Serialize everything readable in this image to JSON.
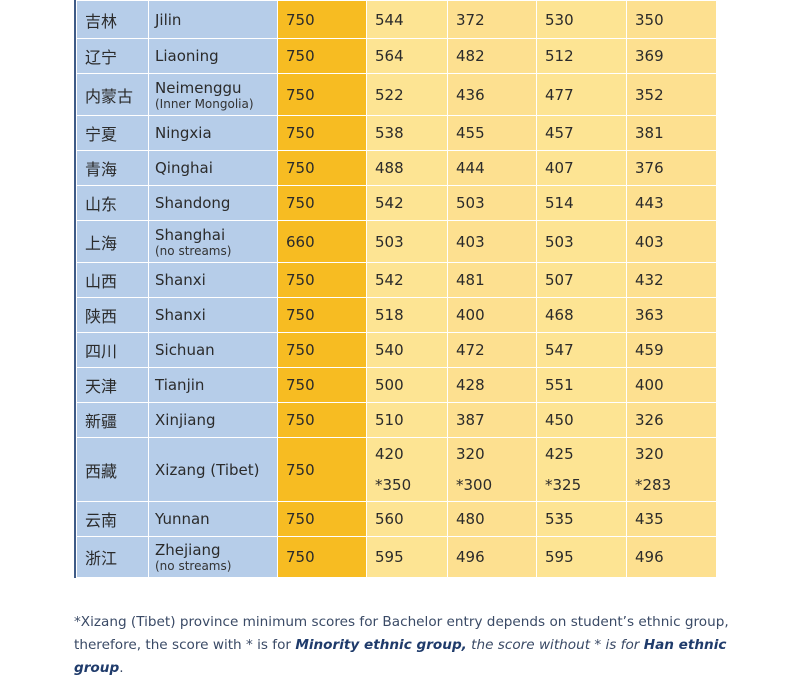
{
  "rows": [
    {
      "cn": "吉林",
      "en": "Jilin",
      "sub": "",
      "total": "750",
      "s1": "544",
      "s2": "372",
      "s3": "530",
      "s4": "350"
    },
    {
      "cn": "辽宁",
      "en": "Liaoning",
      "sub": "",
      "total": "750",
      "s1": "564",
      "s2": "482",
      "s3": "512",
      "s4": "369"
    },
    {
      "cn": "内蒙古",
      "en": "Neimenggu",
      "sub": "(Inner Mongolia)",
      "total": "750",
      "s1": "522",
      "s2": "436",
      "s3": "477",
      "s4": "352"
    },
    {
      "cn": "宁夏",
      "en": "Ningxia",
      "sub": "",
      "total": "750",
      "s1": "538",
      "s2": "455",
      "s3": "457",
      "s4": "381"
    },
    {
      "cn": "青海",
      "en": "Qinghai",
      "sub": "",
      "total": "750",
      "s1": "488",
      "s2": "444",
      "s3": "407",
      "s4": "376"
    },
    {
      "cn": "山东",
      "en": "Shandong",
      "sub": "",
      "total": "750",
      "s1": "542",
      "s2": "503",
      "s3": "514",
      "s4": "443"
    },
    {
      "cn": "上海",
      "en": "Shanghai",
      "sub": "(no streams)",
      "total": "660",
      "s1": "503",
      "s2": "403",
      "s3": "503",
      "s4": "403"
    },
    {
      "cn": "山西",
      "en": "Shanxi",
      "sub": "",
      "total": "750",
      "s1": "542",
      "s2": "481",
      "s3": "507",
      "s4": "432"
    },
    {
      "cn": "陕西",
      "en": "Shanxi",
      "sub": "",
      "total": "750",
      "s1": "518",
      "s2": "400",
      "s3": "468",
      "s4": "363"
    },
    {
      "cn": "四川",
      "en": "Sichuan",
      "sub": "",
      "total": "750",
      "s1": "540",
      "s2": "472",
      "s3": "547",
      "s4": "459"
    },
    {
      "cn": "天津",
      "en": "Tianjin",
      "sub": "",
      "total": "750",
      "s1": "500",
      "s2": "428",
      "s3": "551",
      "s4": "400"
    },
    {
      "cn": "新疆",
      "en": "Xinjiang",
      "sub": "",
      "total": "750",
      "s1": "510",
      "s2": "387",
      "s3": "450",
      "s4": "326"
    }
  ],
  "tibet": {
    "cn": "西藏",
    "en": "Xizang (Tibet)",
    "total": "750",
    "s1": "420",
    "s1b": "*350",
    "s2": "320",
    "s2b": "*300",
    "s3": "425",
    "s3b": "*325",
    "s4": "320",
    "s4b": "*283"
  },
  "rows_after": [
    {
      "cn": "云南",
      "en": "Yunnan",
      "sub": "",
      "total": "750",
      "s1": "560",
      "s2": "480",
      "s3": "535",
      "s4": "435"
    },
    {
      "cn": "浙江",
      "en": "Zhejiang",
      "sub": "(no streams)",
      "total": "750",
      "s1": "595",
      "s2": "496",
      "s3": "595",
      "s4": "496"
    }
  ],
  "footnote": {
    "part1": "*Xizang (Tibet) province minimum scores for Bachelor entry depends on student’s ethnic group, therefore, the score with * is for ",
    "bold1": "Minority ethnic group,",
    "part2": " the score without * is for ",
    "bold2": "Han ethnic group",
    "part3": "."
  }
}
